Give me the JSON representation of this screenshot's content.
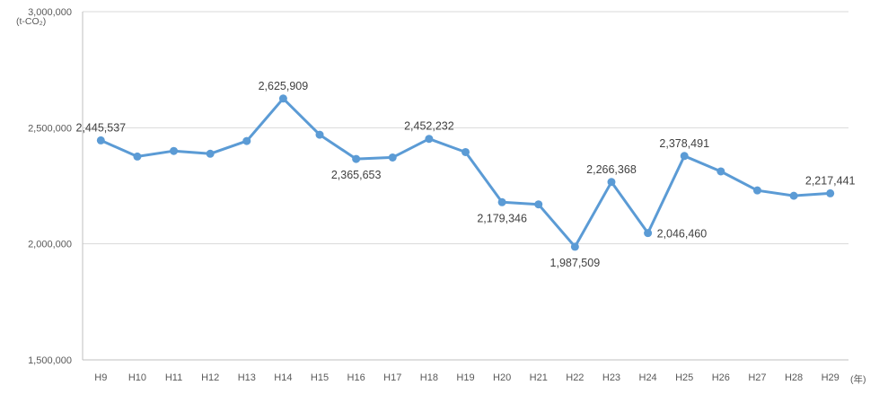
{
  "chart_data": {
    "type": "line",
    "title": "",
    "xlabel": "(年)",
    "ylabel": "(t-CO₂)",
    "ylim": [
      1500000,
      3000000
    ],
    "y_ticks": [
      1500000,
      2000000,
      2500000,
      3000000
    ],
    "y_tick_labels": [
      "1,500,000",
      "2,000,000",
      "2,500,000",
      "3,000,000"
    ],
    "grid": true,
    "legend": "none",
    "categories": [
      "H9",
      "H10",
      "H11",
      "H12",
      "H13",
      "H14",
      "H15",
      "H16",
      "H17",
      "H18",
      "H19",
      "H20",
      "H21",
      "H22",
      "H23",
      "H24",
      "H25",
      "H26",
      "H27",
      "H28",
      "H29"
    ],
    "series": [
      {
        "values": [
          2445537,
          2376000,
          2400000,
          2388000,
          2443000,
          2625909,
          2470000,
          2365653,
          2372000,
          2452232,
          2395000,
          2179346,
          2170000,
          1987509,
          2266368,
          2046460,
          2378491,
          2312000,
          2230000,
          2207000,
          2217441
        ],
        "color": "#5b9bd5"
      }
    ],
    "data_labels": [
      {
        "index": 0,
        "text": "2,445,537",
        "position": "above"
      },
      {
        "index": 5,
        "text": "2,625,909",
        "position": "above"
      },
      {
        "index": 7,
        "text": "2,365,653",
        "position": "below"
      },
      {
        "index": 9,
        "text": "2,452,232",
        "position": "above"
      },
      {
        "index": 11,
        "text": "2,179,346",
        "position": "below"
      },
      {
        "index": 13,
        "text": "1,987,509",
        "position": "below"
      },
      {
        "index": 14,
        "text": "2,266,368",
        "position": "above"
      },
      {
        "index": 15,
        "text": "2,046,460",
        "position": "right"
      },
      {
        "index": 16,
        "text": "2,378,491",
        "position": "above"
      },
      {
        "index": 20,
        "text": "2,217,441",
        "position": "above"
      }
    ]
  }
}
